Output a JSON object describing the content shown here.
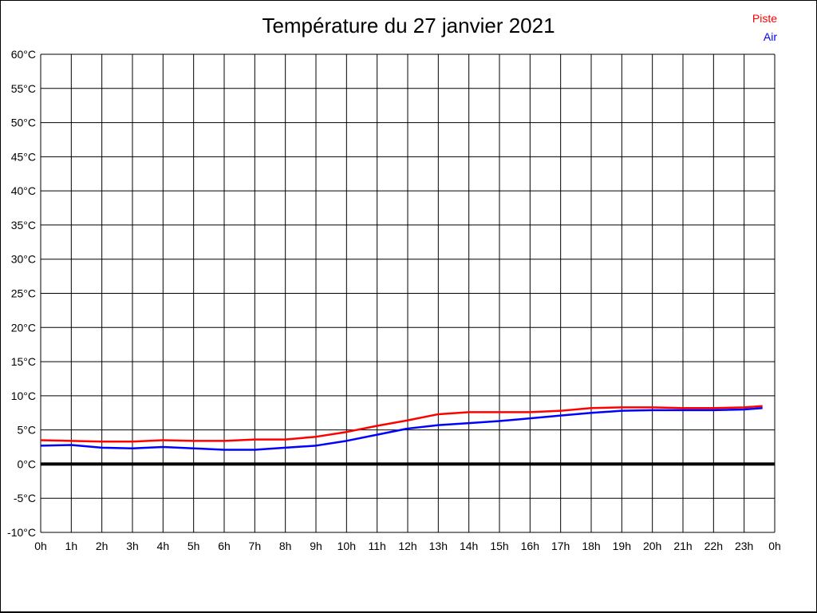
{
  "chart": {
    "title": "Température du 27 janvier 2021"
  },
  "chart_data": {
    "type": "line",
    "title": "Température du 27 janvier 2021",
    "xlabel": "",
    "ylabel": "",
    "xlim": [
      0,
      24
    ],
    "ylim": [
      -10,
      60
    ],
    "grid": true,
    "legend_position": "top-right",
    "background": "#ffffff",
    "grid_color": "#000000",
    "zero_line": {
      "value": 0,
      "color": "#000000",
      "width": 4
    },
    "x_tick_labels": [
      "0h",
      "1h",
      "2h",
      "3h",
      "4h",
      "5h",
      "6h",
      "7h",
      "8h",
      "9h",
      "10h",
      "11h",
      "12h",
      "13h",
      "14h",
      "15h",
      "16h",
      "17h",
      "18h",
      "19h",
      "20h",
      "21h",
      "22h",
      "23h",
      "0h"
    ],
    "y_tick_values": [
      -10,
      -5,
      0,
      5,
      10,
      15,
      20,
      25,
      30,
      35,
      40,
      45,
      50,
      55,
      60
    ],
    "y_tick_labels": [
      "-10°C",
      "-5°C",
      "0°C",
      "5°C",
      "10°C",
      "15°C",
      "20°C",
      "25°C",
      "30°C",
      "35°C",
      "40°C",
      "45°C",
      "50°C",
      "55°C",
      "60°C"
    ],
    "x": [
      0,
      1,
      2,
      3,
      4,
      5,
      6,
      7,
      8,
      9,
      10,
      11,
      12,
      13,
      14,
      15,
      16,
      17,
      18,
      19,
      20,
      21,
      22,
      23,
      23.6
    ],
    "series": [
      {
        "name": "Piste",
        "color": "#ff0000",
        "values": [
          3.5,
          3.4,
          3.3,
          3.3,
          3.5,
          3.4,
          3.4,
          3.6,
          3.6,
          4.0,
          4.7,
          5.6,
          6.4,
          7.3,
          7.6,
          7.6,
          7.6,
          7.8,
          8.2,
          8.3,
          8.3,
          8.2,
          8.2,
          8.3,
          8.5
        ]
      },
      {
        "name": "Air",
        "color": "#0000ff",
        "values": [
          2.7,
          2.8,
          2.4,
          2.3,
          2.5,
          2.3,
          2.1,
          2.1,
          2.4,
          2.7,
          3.4,
          4.3,
          5.2,
          5.7,
          6.0,
          6.3,
          6.7,
          7.1,
          7.5,
          7.8,
          7.9,
          7.9,
          7.9,
          8.0,
          8.2
        ]
      }
    ]
  }
}
